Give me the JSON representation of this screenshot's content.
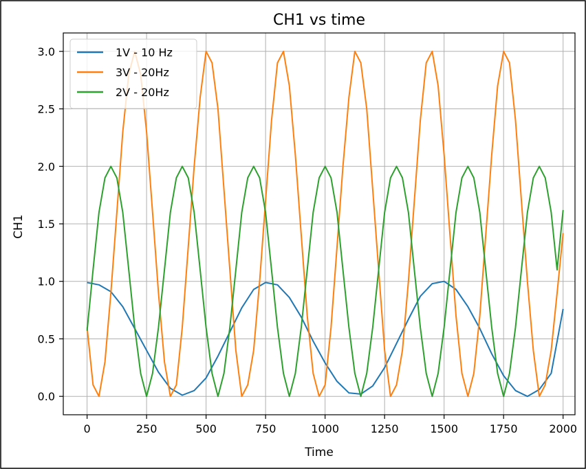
{
  "chart_data": {
    "type": "line",
    "title": "CH1 vs time",
    "xlabel": "Time",
    "ylabel": "CH1",
    "xlim": [
      -100,
      2050
    ],
    "ylim": [
      -0.16,
      3.16
    ],
    "xticks": [
      0,
      250,
      500,
      750,
      1000,
      1250,
      1500,
      1750,
      2000
    ],
    "yticks": [
      0.0,
      0.5,
      1.0,
      1.5,
      2.0,
      2.5,
      3.0
    ],
    "xtick_labels": [
      "0",
      "250",
      "500",
      "750",
      "1000",
      "1250",
      "1500",
      "1750",
      "2000"
    ],
    "ytick_labels": [
      "0.0",
      "0.5",
      "1.0",
      "1.5",
      "2.0",
      "2.5",
      "3.0"
    ],
    "grid": true,
    "legend_position": "top-left",
    "series": [
      {
        "name": "1V - 10 Hz",
        "color": "#1f77b4",
        "x": [
          0,
          50,
          100,
          150,
          200,
          250,
          300,
          350,
          400,
          450,
          500,
          550,
          600,
          650,
          700,
          750,
          800,
          850,
          900,
          950,
          1000,
          1050,
          1100,
          1150,
          1200,
          1250,
          1300,
          1350,
          1400,
          1450,
          1500,
          1550,
          1600,
          1650,
          1700,
          1750,
          1800,
          1850,
          1900,
          1950,
          2000
        ],
        "values": [
          0.99,
          0.97,
          0.91,
          0.78,
          0.59,
          0.4,
          0.21,
          0.07,
          0.01,
          0.05,
          0.16,
          0.35,
          0.56,
          0.77,
          0.93,
          0.99,
          0.97,
          0.86,
          0.69,
          0.48,
          0.29,
          0.13,
          0.03,
          0.02,
          0.09,
          0.25,
          0.46,
          0.67,
          0.87,
          0.98,
          1.0,
          0.93,
          0.78,
          0.59,
          0.37,
          0.18,
          0.05,
          0.0,
          0.06,
          0.2,
          0.76
        ]
      },
      {
        "name": "3V - 20Hz",
        "color": "#ff7f0e",
        "x": [
          0,
          25,
          50,
          75,
          100,
          125,
          150,
          175,
          200,
          225,
          250,
          275,
          300,
          325,
          350,
          375,
          400,
          425,
          450,
          475,
          500,
          525,
          550,
          575,
          600,
          625,
          650,
          675,
          700,
          725,
          750,
          775,
          800,
          825,
          850,
          875,
          900,
          925,
          950,
          975,
          1000,
          1025,
          1050,
          1075,
          1100,
          1125,
          1150,
          1175,
          1200,
          1225,
          1250,
          1275,
          1300,
          1325,
          1350,
          1375,
          1400,
          1425,
          1450,
          1475,
          1500,
          1525,
          1550,
          1575,
          1600,
          1625,
          1650,
          1675,
          1700,
          1725,
          1750,
          1775,
          1800,
          1825,
          1850,
          1875,
          1900,
          1925,
          1950,
          1975,
          2000
        ],
        "values": [
          0.6,
          0.1,
          0.0,
          0.3,
          0.9,
          1.6,
          2.3,
          2.8,
          3.0,
          2.8,
          2.3,
          1.6,
          0.9,
          0.3,
          0.0,
          0.1,
          0.6,
          1.3,
          2.0,
          2.6,
          3.0,
          2.9,
          2.5,
          1.8,
          1.1,
          0.4,
          0.0,
          0.1,
          0.4,
          1.0,
          1.7,
          2.4,
          2.9,
          3.0,
          2.7,
          2.1,
          1.4,
          0.7,
          0.2,
          0.0,
          0.1,
          0.6,
          1.3,
          2.0,
          2.6,
          3.0,
          2.9,
          2.5,
          1.8,
          1.1,
          0.4,
          0.0,
          0.1,
          0.4,
          1.0,
          1.7,
          2.4,
          2.9,
          3.0,
          2.7,
          2.1,
          1.4,
          0.7,
          0.2,
          0.0,
          0.2,
          0.7,
          1.4,
          2.1,
          2.7,
          3.0,
          2.9,
          2.4,
          1.7,
          1.0,
          0.4,
          0.0,
          0.1,
          0.4,
          0.9,
          1.42
        ]
      },
      {
        "name": "2V - 20Hz",
        "color": "#2ca02c",
        "x": [
          0,
          25,
          50,
          75,
          100,
          125,
          150,
          175,
          200,
          225,
          250,
          275,
          300,
          325,
          350,
          375,
          400,
          425,
          450,
          475,
          500,
          525,
          550,
          575,
          600,
          625,
          650,
          675,
          700,
          725,
          750,
          775,
          800,
          825,
          850,
          875,
          900,
          925,
          950,
          975,
          1000,
          1025,
          1050,
          1075,
          1100,
          1125,
          1150,
          1175,
          1200,
          1225,
          1250,
          1275,
          1300,
          1325,
          1350,
          1375,
          1400,
          1425,
          1450,
          1475,
          1500,
          1525,
          1550,
          1575,
          1600,
          1625,
          1650,
          1675,
          1700,
          1725,
          1750,
          1775,
          1800,
          1825,
          1850,
          1875,
          1900,
          1925,
          1950,
          1975,
          2000
        ],
        "values": [
          0.57,
          1.1,
          1.6,
          1.9,
          2.0,
          1.9,
          1.6,
          1.1,
          0.6,
          0.2,
          0.0,
          0.2,
          0.6,
          1.1,
          1.6,
          1.9,
          2.0,
          1.9,
          1.6,
          1.1,
          0.6,
          0.2,
          0.0,
          0.2,
          0.6,
          1.1,
          1.6,
          1.9,
          2.0,
          1.9,
          1.6,
          1.1,
          0.6,
          0.2,
          0.0,
          0.2,
          0.6,
          1.1,
          1.6,
          1.9,
          2.0,
          1.9,
          1.6,
          1.1,
          0.6,
          0.2,
          0.0,
          0.2,
          0.6,
          1.1,
          1.6,
          1.9,
          2.0,
          1.9,
          1.6,
          1.1,
          0.6,
          0.2,
          0.0,
          0.2,
          0.6,
          1.1,
          1.6,
          1.9,
          2.0,
          1.9,
          1.6,
          1.1,
          0.6,
          0.2,
          0.0,
          0.2,
          0.6,
          1.1,
          1.6,
          1.9,
          2.0,
          1.9,
          1.6,
          1.1,
          1.62
        ]
      }
    ]
  }
}
